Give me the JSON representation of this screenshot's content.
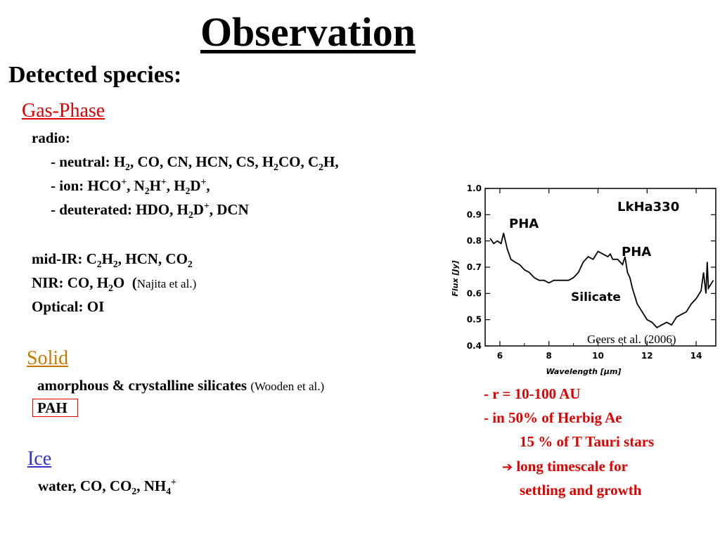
{
  "slide": {
    "title": "Observation",
    "subtitle": "Detected species:",
    "gas_phase": {
      "heading": "Gas-Phase",
      "radio": "radio:",
      "neutral": [
        "- neutral: H",
        "2",
        ", CO, CN, HCN, CS, H",
        "2",
        "CO, C",
        "2",
        "H,"
      ],
      "ion": [
        "- ion: HCO",
        "+",
        ", N",
        "2",
        "H",
        "+",
        ", H",
        "2",
        "D",
        "+",
        ","
      ],
      "deuterated": [
        "- deuterated: HDO, H",
        "2",
        "D",
        "+",
        ", DCN"
      ],
      "midir": [
        "mid-IR: C",
        "2",
        "H",
        "2",
        ", HCN, CO",
        "2"
      ],
      "nir": [
        "NIR: CO, H",
        "2",
        "O  (",
        "Najita et al.)"
      ],
      "optical": "Optical: OI"
    },
    "solid": {
      "heading": "Solid",
      "silicates": "amorphous & crystalline silicates",
      "silicates_ref": "(Wooden et al.)",
      "pah": "PAH"
    },
    "ice": {
      "heading": "Ice",
      "species": [
        "water, CO, CO",
        "2",
        ", NH",
        "4",
        "+"
      ]
    },
    "notes": {
      "line1": "- r = 10-100 AU",
      "line2": "- in 50% of Herbig Ae",
      "line3": "15 % of T Tauri stars",
      "arrow": "➔",
      "line4": "long timescale for",
      "line5": "settling and growth"
    },
    "colors": {
      "red": "#e00000",
      "solid_heading": "#c87800",
      "ice_heading": "#3333cc"
    }
  },
  "chart_data": {
    "type": "line",
    "xlabel": "Wavelength [μm]",
    "ylabel": "Flux [Jy]",
    "xlim": [
      5.4,
      14.8
    ],
    "ylim": [
      0.4,
      1.0
    ],
    "x_ticks": [
      "6",
      "8",
      "10",
      "12",
      "14"
    ],
    "y_ticks": [
      "1.0",
      "0.9",
      "0.8",
      "0.7",
      "0.6",
      "0.5",
      "0.4"
    ],
    "annotations": [
      "LkHa330",
      "PHA",
      "PHA",
      "Silicate"
    ],
    "credit": "Geers et al. (2006)",
    "series": [
      {
        "x": [
          5.6,
          5.75,
          5.9,
          6.05,
          6.15,
          6.2,
          6.3,
          6.45,
          6.6,
          6.8,
          7.0,
          7.2,
          7.4,
          7.6,
          7.8,
          8.0,
          8.2,
          8.4,
          8.6,
          8.8,
          9.0,
          9.2,
          9.4,
          9.6,
          9.8,
          10.0,
          10.2,
          10.4,
          10.5,
          10.6,
          10.8,
          11.0,
          11.1,
          11.2,
          11.3,
          11.4,
          11.6,
          11.8,
          12.0,
          12.2,
          12.4,
          12.6,
          12.8,
          13.0,
          13.2,
          13.4,
          13.6,
          13.8,
          14.0,
          14.2,
          14.3,
          14.4,
          14.45,
          14.5,
          14.7
        ],
        "y": [
          0.81,
          0.79,
          0.8,
          0.79,
          0.83,
          0.81,
          0.77,
          0.73,
          0.72,
          0.71,
          0.69,
          0.68,
          0.66,
          0.65,
          0.65,
          0.64,
          0.65,
          0.65,
          0.65,
          0.65,
          0.66,
          0.68,
          0.72,
          0.74,
          0.73,
          0.76,
          0.75,
          0.74,
          0.75,
          0.73,
          0.73,
          0.71,
          0.74,
          0.68,
          0.66,
          0.62,
          0.56,
          0.53,
          0.5,
          0.49,
          0.47,
          0.48,
          0.49,
          0.48,
          0.51,
          0.52,
          0.53,
          0.56,
          0.58,
          0.61,
          0.68,
          0.6,
          0.72,
          0.62,
          0.65
        ]
      }
    ]
  }
}
